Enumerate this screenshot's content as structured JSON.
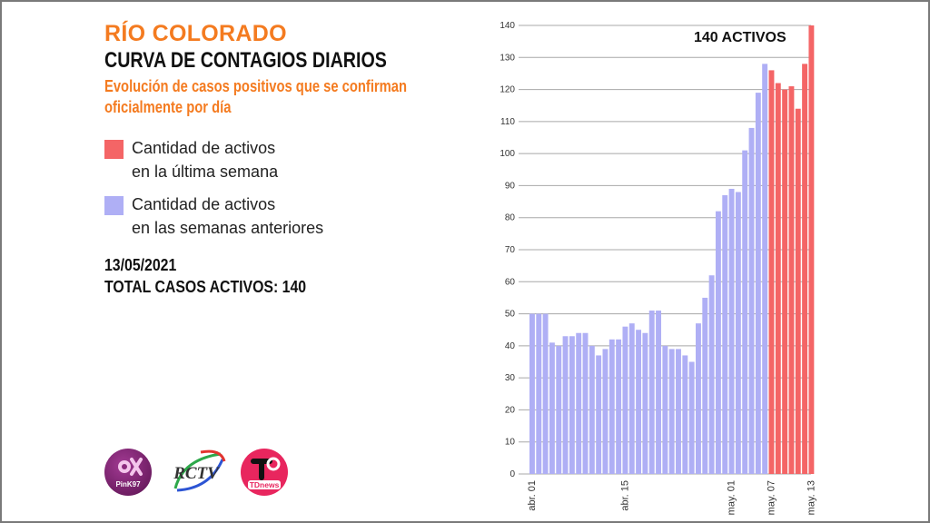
{
  "header": {
    "place": "RÍO COLORADO",
    "title": "CURVA DE CONTAGIOS DIARIOS",
    "subtitle_line1": "Evolución de casos positivos que se confirman",
    "subtitle_line2": "oficialmente por día"
  },
  "legend": [
    {
      "line1": "Cantidad de activos",
      "line2": "en la última semana",
      "color": "#f46566"
    },
    {
      "line1": "Cantidad de activos",
      "line2": "en las semanas anteriores",
      "color": "#afaff5"
    }
  ],
  "summary": {
    "date": "13/05/2021",
    "total": "TOTAL CASOS ACTIVOS: 140"
  },
  "logos": [
    {
      "name": "PinK97",
      "color": "#7b1f6e"
    },
    {
      "name": "RCTV",
      "color": "#333333"
    },
    {
      "name": "TDnews",
      "color": "#e8265e"
    }
  ],
  "colors": {
    "accent": "#f47b20",
    "recent": "#f46566",
    "previous": "#afaff5",
    "grid": "#a8a8a8"
  },
  "chart_data": {
    "type": "bar",
    "title": "CURVA DE CONTAGIOS DIARIOS",
    "annotation": "140 ACTIVOS",
    "xlabel": "",
    "ylabel": "",
    "ylim": [
      0,
      140
    ],
    "yticks": [
      0,
      10,
      20,
      30,
      40,
      50,
      60,
      70,
      80,
      90,
      100,
      110,
      120,
      130,
      140
    ],
    "xtick_labels": [
      {
        "index": 0,
        "label": "abr. 01"
      },
      {
        "index": 14,
        "label": "abr. 15"
      },
      {
        "index": 30,
        "label": "may. 01"
      },
      {
        "index": 36,
        "label": "may. 07"
      },
      {
        "index": 42,
        "label": "may. 13"
      }
    ],
    "grid": true,
    "series": [
      {
        "name": "Cantidad de activos en las semanas anteriores",
        "start_index": 0,
        "values": [
          50,
          50,
          50,
          41,
          40,
          43,
          43,
          44,
          44,
          40,
          37,
          39,
          42,
          42,
          46,
          47,
          45,
          44,
          51,
          51,
          40,
          39,
          39,
          37,
          35,
          47,
          55,
          62,
          82,
          87,
          89,
          88,
          101,
          108,
          119,
          128
        ]
      },
      {
        "name": "Cantidad de activos en la última semana",
        "start_index": 36,
        "values": [
          126,
          122,
          120,
          121,
          114,
          128,
          140
        ]
      }
    ]
  }
}
